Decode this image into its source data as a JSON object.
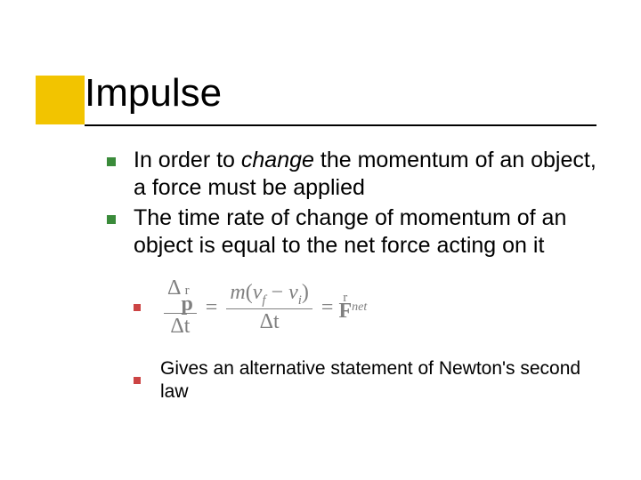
{
  "accent_color": "#f2c400",
  "title": "Impulse",
  "bullets": {
    "b1_pre": "In order to ",
    "b1_em": "change",
    "b1_post": " the momentum of an object, a force must be applied",
    "b2": "The time rate of change of momentum of an object is equal to the net force acting on it"
  },
  "formula": {
    "delta": "Δ",
    "p_sym": "p",
    "dt": "Δt",
    "m": "m",
    "v": "v",
    "f_sub": "f",
    "i_sub": "i",
    "minus": " − ",
    "lpar": "(",
    "rpar": ")",
    "eq": "=",
    "F_sym": "F",
    "net": "net",
    "arrow": "r"
  },
  "sub_bullet_text": "Gives an alternative statement of Newton's second law",
  "bullet_colors": {
    "main": "#3a8b3a",
    "sub": "#cc4444"
  }
}
